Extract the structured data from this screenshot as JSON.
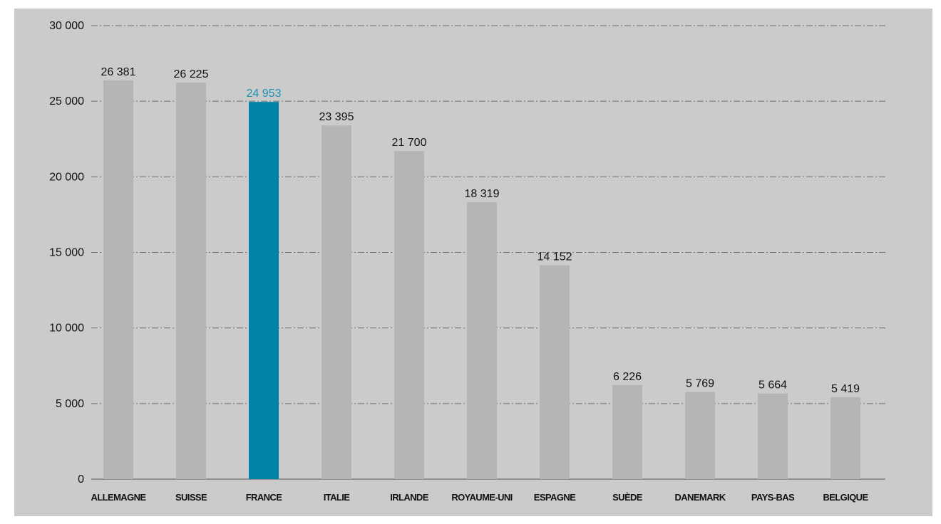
{
  "colors": {
    "background": "#cbcbcb",
    "bar": "#b5b5b6",
    "highlight_bar": "#0083a5",
    "highlight_label": "#1b91b3",
    "gridline": "#6d6d6d",
    "text": "#111111"
  },
  "chart_data": {
    "type": "bar",
    "title": "",
    "xlabel": "",
    "ylabel": "",
    "ylim": [
      0,
      30000
    ],
    "grid": true,
    "legend": "none",
    "y_ticks": [
      {
        "value": 0,
        "label": "0"
      },
      {
        "value": 5000,
        "label": "5 000"
      },
      {
        "value": 10000,
        "label": "10 000"
      },
      {
        "value": 15000,
        "label": "15 000"
      },
      {
        "value": 20000,
        "label": "20 000"
      },
      {
        "value": 25000,
        "label": "25 000"
      },
      {
        "value": 30000,
        "label": "30 000"
      }
    ],
    "categories": [
      "ALLEMAGNE",
      "SUISSE",
      "FRANCE",
      "ITALIE",
      "IRLANDE",
      "ROYAUME-UNI",
      "ESPAGNE",
      "SUÈDE",
      "DANEMARK",
      "PAYS-BAS",
      "BELGIQUE"
    ],
    "values": [
      26381,
      26225,
      24953,
      23395,
      21700,
      18319,
      14152,
      6226,
      5769,
      5664,
      5419
    ],
    "value_labels": [
      "26 381",
      "26 225",
      "24 953",
      "23 395",
      "21 700",
      "18 319",
      "14 152",
      "6 226",
      "5 769",
      "5 664",
      "5 419"
    ],
    "highlight_category": "FRANCE"
  }
}
